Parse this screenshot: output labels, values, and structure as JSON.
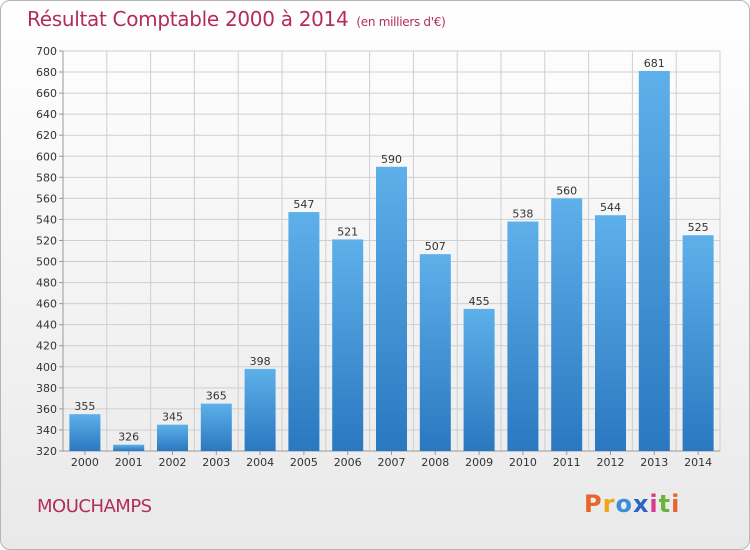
{
  "title": "Résultat Comptable 2000 à 2014",
  "subtitle": "(en milliers d'€)",
  "commune": "MOUCHAMPS",
  "logo": {
    "text": "Proxiti",
    "colors": [
      "#e8642a",
      "#f2a31c",
      "#3a8fd6",
      "#2e63c4",
      "#d63b8c",
      "#6bb33a",
      "#e8642a"
    ]
  },
  "colors": {
    "title": "#b42d5a",
    "bar_top": "#5eb0ea",
    "bar_bottom": "#2a78c0",
    "grid": "#cfcfcf"
  },
  "chart_data": {
    "type": "bar",
    "categories": [
      "2000",
      "2001",
      "2002",
      "2003",
      "2004",
      "2005",
      "2006",
      "2007",
      "2008",
      "2009",
      "2010",
      "2011",
      "2012",
      "2013",
      "2014"
    ],
    "values": [
      355,
      326,
      345,
      365,
      398,
      547,
      521,
      590,
      507,
      455,
      538,
      560,
      544,
      681,
      525
    ],
    "ylim": [
      320,
      700
    ],
    "yticks": [
      320,
      340,
      360,
      380,
      400,
      420,
      440,
      460,
      480,
      500,
      520,
      540,
      560,
      580,
      600,
      620,
      640,
      660,
      680,
      700
    ],
    "grid": true,
    "legend": "none"
  }
}
